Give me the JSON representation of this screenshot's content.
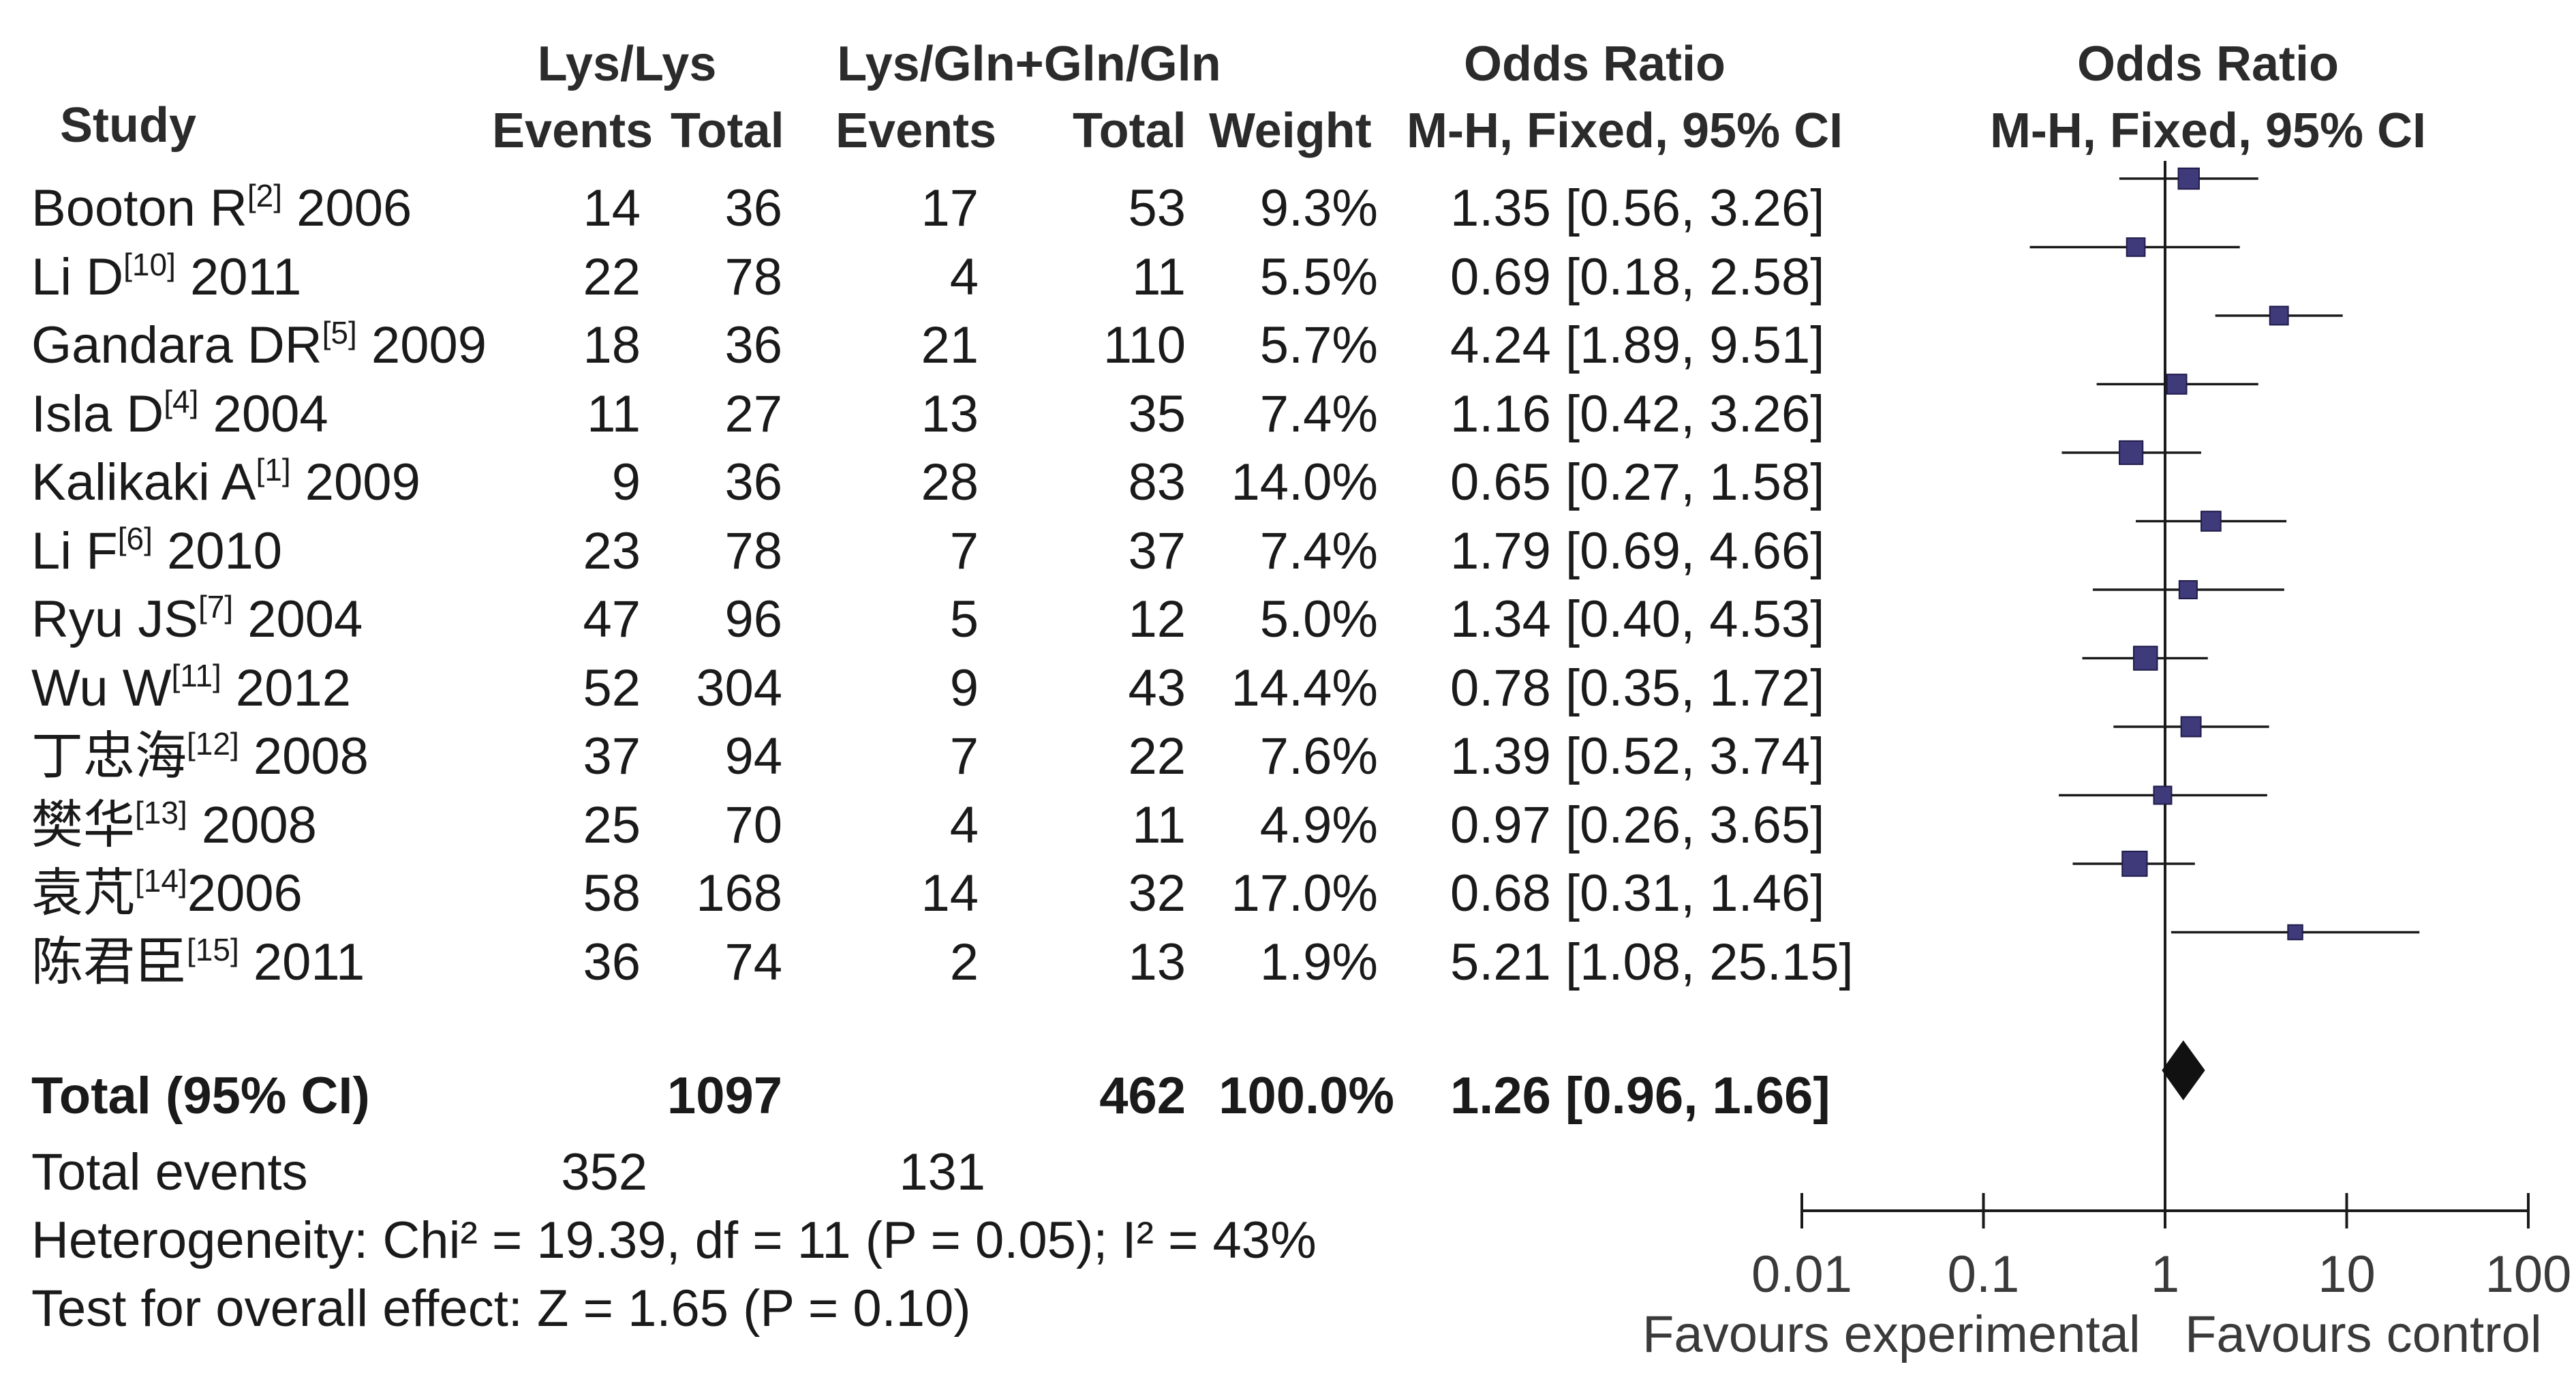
{
  "headers": {
    "study": "Study",
    "group1": "Lys/Lys",
    "group2": "Lys/Gln+Gln/Gln",
    "events": "Events",
    "total": "Total",
    "weight": "Weight",
    "or_title": "Odds Ratio",
    "or_method": "M-H, Fixed, 95% CI",
    "plot_title": "Odds Ratio",
    "plot_method": "M-H, Fixed, 95% CI"
  },
  "studies": [
    {
      "name": "Booton R",
      "ref": "[2]",
      "year": " 2006",
      "e1": "14",
      "t1": "36",
      "e2": "17",
      "t2": "53",
      "weight": "9.3%",
      "ci": "1.35 [0.56, 3.26]"
    },
    {
      "name": "Li D",
      "ref": "[10]",
      "year": " 2011",
      "e1": "22",
      "t1": "78",
      "e2": "4",
      "t2": "11",
      "weight": "5.5%",
      "ci": "0.69 [0.18, 2.58]"
    },
    {
      "name": "Gandara DR",
      "ref": "[5]",
      "year": " 2009",
      "e1": "18",
      "t1": "36",
      "e2": "21",
      "t2": "110",
      "weight": "5.7%",
      "ci": "4.24 [1.89, 9.51]"
    },
    {
      "name": "Isla D",
      "ref": "[4]",
      "year": " 2004",
      "e1": "11",
      "t1": "27",
      "e2": "13",
      "t2": "35",
      "weight": "7.4%",
      "ci": "1.16 [0.42, 3.26]"
    },
    {
      "name": "Kalikaki A",
      "ref": "[1]",
      "year": " 2009",
      "e1": "9",
      "t1": "36",
      "e2": "28",
      "t2": "83",
      "weight": "14.0%",
      "ci": "0.65 [0.27, 1.58]"
    },
    {
      "name": "Li F",
      "ref": "[6]",
      "year": " 2010",
      "e1": "23",
      "t1": "78",
      "e2": "7",
      "t2": "37",
      "weight": "7.4%",
      "ci": "1.79 [0.69, 4.66]"
    },
    {
      "name": "Ryu JS",
      "ref": "[7]",
      "year": " 2004",
      "e1": "47",
      "t1": "96",
      "e2": "5",
      "t2": "12",
      "weight": "5.0%",
      "ci": "1.34 [0.40, 4.53]"
    },
    {
      "name": "Wu W",
      "ref": "[11]",
      "year": " 2012",
      "e1": "52",
      "t1": "304",
      "e2": "9",
      "t2": "43",
      "weight": "14.4%",
      "ci": "0.78 [0.35, 1.72]"
    },
    {
      "name": "丁忠海",
      "ref": "[12]",
      "year": " 2008",
      "e1": "37",
      "t1": "94",
      "e2": "7",
      "t2": "22",
      "weight": "7.6%",
      "ci": "1.39 [0.52, 3.74]"
    },
    {
      "name": "樊华",
      "ref": "[13]",
      "year": " 2008",
      "e1": "25",
      "t1": "70",
      "e2": "4",
      "t2": "11",
      "weight": "4.9%",
      "ci": "0.97 [0.26, 3.65]"
    },
    {
      "name": "袁芃",
      "ref": "[14]",
      "year": "2006",
      "e1": "58",
      "t1": "168",
      "e2": "14",
      "t2": "32",
      "weight": "17.0%",
      "ci": "0.68 [0.31, 1.46]"
    },
    {
      "name": "陈君臣",
      "ref": "[15]",
      "year": " 2011",
      "e1": "36",
      "t1": "74",
      "e2": "2",
      "t2": "13",
      "weight": "1.9%",
      "ci": "5.21 [1.08, 25.15]"
    }
  ],
  "total": {
    "label": "Total (95% CI)",
    "t1": "1097",
    "t2": "462",
    "weight": "100.0%",
    "ci": "1.26 [0.96, 1.66]"
  },
  "total_events": {
    "label": "Total events",
    "e1": "352",
    "e2": "131"
  },
  "heterogeneity": "Heterogeneity: Chi² = 19.39, df = 11 (P = 0.05); I² = 43%",
  "overall_effect": "Test for overall effect: Z = 1.65 (P = 0.10)",
  "axis": {
    "ticks": [
      "0.01",
      "0.1",
      "1",
      "10",
      "100"
    ],
    "left_label": "Favours experimental",
    "right_label": "Favours control"
  },
  "colors": {
    "square": "#3f3a7a",
    "square_edge": "#1f1c4a",
    "line": "#1a1a1a",
    "diamond": "#111111",
    "header": "#2b2b2b"
  },
  "chart_data": {
    "type": "forest",
    "scale": "log",
    "xlim": [
      0.01,
      100
    ],
    "null_value": 1,
    "studies": [
      {
        "or": 1.35,
        "lo": 0.56,
        "hi": 3.26,
        "weight": 9.3
      },
      {
        "or": 0.69,
        "lo": 0.18,
        "hi": 2.58,
        "weight": 5.5
      },
      {
        "or": 4.24,
        "lo": 1.89,
        "hi": 9.51,
        "weight": 5.7
      },
      {
        "or": 1.16,
        "lo": 0.42,
        "hi": 3.26,
        "weight": 7.4
      },
      {
        "or": 0.65,
        "lo": 0.27,
        "hi": 1.58,
        "weight": 14.0
      },
      {
        "or": 1.79,
        "lo": 0.69,
        "hi": 4.66,
        "weight": 7.4
      },
      {
        "or": 1.34,
        "lo": 0.4,
        "hi": 4.53,
        "weight": 5.0
      },
      {
        "or": 0.78,
        "lo": 0.35,
        "hi": 1.72,
        "weight": 14.4
      },
      {
        "or": 1.39,
        "lo": 0.52,
        "hi": 3.74,
        "weight": 7.6
      },
      {
        "or": 0.97,
        "lo": 0.26,
        "hi": 3.65,
        "weight": 4.9
      },
      {
        "or": 0.68,
        "lo": 0.31,
        "hi": 1.46,
        "weight": 17.0
      },
      {
        "or": 5.21,
        "lo": 1.08,
        "hi": 25.15,
        "weight": 1.9
      }
    ],
    "pooled": {
      "or": 1.26,
      "lo": 0.96,
      "hi": 1.66
    }
  }
}
